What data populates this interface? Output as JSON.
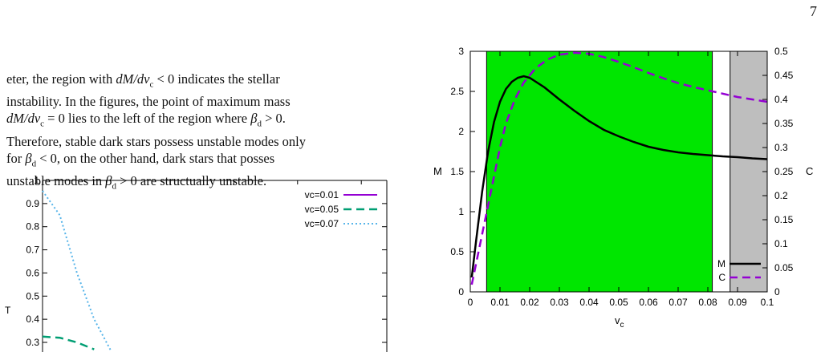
{
  "page_number": "7",
  "paragraph": {
    "line1_a": "eter, the region with ",
    "line1_math": "dM/dv",
    "line1_sub": "c",
    "line1_b": " < 0 indicates the stellar",
    "line2": "instability. In the figures, the point of maximum mass",
    "line3_math": "dM/dv",
    "line3_sub": "c",
    "line3_b": " = 0 lies to the left of the region where ",
    "line3_beta": "β",
    "line3_betasub": "d",
    "line3_c": " > 0.",
    "line4": "Therefore, stable dark stars possess unstable modes only",
    "line5_a": "for ",
    "line5_beta": "β",
    "line5_betasub": "d",
    "line5_b": " < 0, on the other hand, dark stars that posses",
    "line6_a": "unstable modes in ",
    "line6_beta": "β",
    "line6_betasub": "d",
    "line6_b": " > 0 are structually unstable."
  },
  "chart_data": [
    {
      "type": "line",
      "ylabel": "T",
      "y_ticks": [
        "1",
        "0.9",
        "0.8",
        "0.7",
        "0.6",
        "0.5",
        "0.4",
        "0.3"
      ],
      "legend_position": "top-right",
      "series": [
        {
          "name": "vc=0.01",
          "color": "#9400d3",
          "style": "solid",
          "points": []
        },
        {
          "name": "vc=0.05",
          "color": "#009e73",
          "style": "dashed",
          "points": [
            [
              0.0,
              0.325
            ],
            [
              0.05,
              0.32
            ],
            [
              0.1,
              0.3
            ],
            [
              0.15,
              0.27
            ]
          ]
        },
        {
          "name": "vc=0.07",
          "color": "#56b4e9",
          "style": "dotted",
          "points": [
            [
              0.0,
              0.955
            ],
            [
              0.05,
              0.85
            ],
            [
              0.1,
              0.6
            ],
            [
              0.15,
              0.4
            ],
            [
              0.2,
              0.26
            ]
          ]
        }
      ]
    },
    {
      "type": "line",
      "xlabel": "v",
      "xlabel_sub": "c",
      "ylabel_left": "M",
      "ylabel_right": "C",
      "xlim": [
        0,
        0.1
      ],
      "ylim_left": [
        0,
        3
      ],
      "ylim_right": [
        0,
        0.5
      ],
      "x_ticks": [
        "0",
        "0.01",
        "0.02",
        "0.03",
        "0.04",
        "0.05",
        "0.06",
        "0.07",
        "0.08",
        "0.09",
        "0.1"
      ],
      "y_left_ticks": [
        "0",
        "0.5",
        "1",
        "1.5",
        "2",
        "2.5",
        "3"
      ],
      "y_right_ticks": [
        "0",
        "0.05",
        "0.1",
        "0.15",
        "0.2",
        "0.25",
        "0.3",
        "0.35",
        "0.4",
        "0.45",
        "0.5"
      ],
      "legend_position": "bottom-right",
      "regions": [
        {
          "from": 0.0055,
          "to": 0.0815,
          "color": "#00e600"
        },
        {
          "from": 0.0875,
          "to": 0.1,
          "color": "#bebebe"
        }
      ],
      "series": [
        {
          "name": "M",
          "axis": "left",
          "color": "#000000",
          "style": "solid",
          "points": [
            [
              0.0005,
              0.18
            ],
            [
              0.002,
              0.65
            ],
            [
              0.004,
              1.25
            ],
            [
              0.006,
              1.75
            ],
            [
              0.008,
              2.12
            ],
            [
              0.01,
              2.37
            ],
            [
              0.012,
              2.53
            ],
            [
              0.014,
              2.62
            ],
            [
              0.016,
              2.67
            ],
            [
              0.018,
              2.69
            ],
            [
              0.02,
              2.67
            ],
            [
              0.025,
              2.55
            ],
            [
              0.03,
              2.4
            ],
            [
              0.035,
              2.26
            ],
            [
              0.04,
              2.13
            ],
            [
              0.045,
              2.02
            ],
            [
              0.05,
              1.94
            ],
            [
              0.055,
              1.87
            ],
            [
              0.06,
              1.81
            ],
            [
              0.065,
              1.77
            ],
            [
              0.07,
              1.74
            ],
            [
              0.075,
              1.72
            ],
            [
              0.08,
              1.705
            ],
            [
              0.085,
              1.69
            ],
            [
              0.09,
              1.68
            ],
            [
              0.095,
              1.665
            ],
            [
              0.1,
              1.655
            ]
          ]
        },
        {
          "name": "C",
          "axis": "right",
          "color": "#9400d3",
          "style": "dashed",
          "points": [
            [
              0.0005,
              0.015
            ],
            [
              0.002,
              0.06
            ],
            [
              0.004,
              0.12
            ],
            [
              0.006,
              0.18
            ],
            [
              0.008,
              0.24
            ],
            [
              0.01,
              0.3
            ],
            [
              0.012,
              0.35
            ],
            [
              0.015,
              0.4
            ],
            [
              0.018,
              0.435
            ],
            [
              0.022,
              0.465
            ],
            [
              0.026,
              0.483
            ],
            [
              0.03,
              0.493
            ],
            [
              0.035,
              0.497
            ],
            [
              0.04,
              0.495
            ],
            [
              0.045,
              0.488
            ],
            [
              0.05,
              0.478
            ],
            [
              0.055,
              0.467
            ],
            [
              0.06,
              0.455
            ],
            [
              0.065,
              0.444
            ],
            [
              0.07,
              0.434
            ],
            [
              0.075,
              0.426
            ],
            [
              0.08,
              0.419
            ],
            [
              0.085,
              0.412
            ],
            [
              0.09,
              0.405
            ],
            [
              0.095,
              0.4
            ],
            [
              0.1,
              0.395
            ]
          ]
        }
      ]
    }
  ]
}
